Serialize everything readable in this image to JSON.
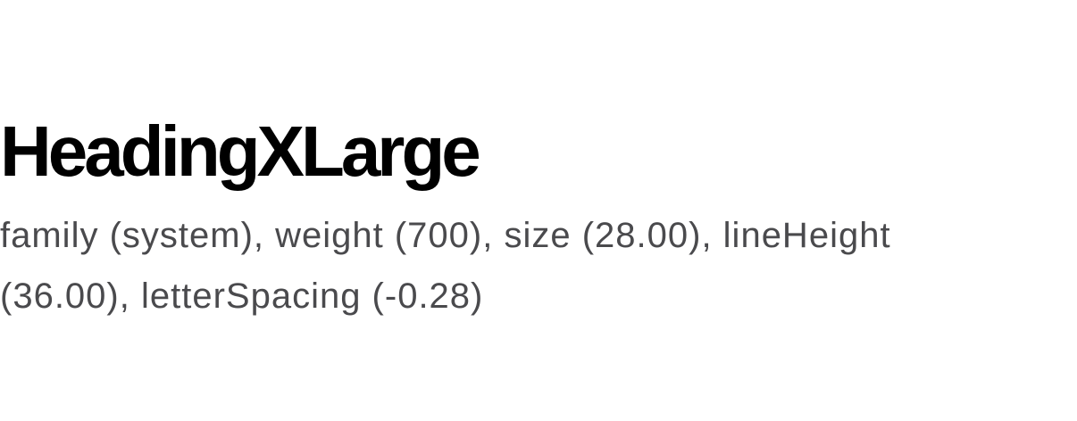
{
  "specimen": {
    "title": "HeadingXLarge",
    "description": "family (system), weight (700), size (28.00), lineHeight (36.00), letterSpacing (-0.28)"
  },
  "colors": {
    "background": "#ffffff",
    "title": "#000000",
    "description": "#4a4a4d"
  }
}
